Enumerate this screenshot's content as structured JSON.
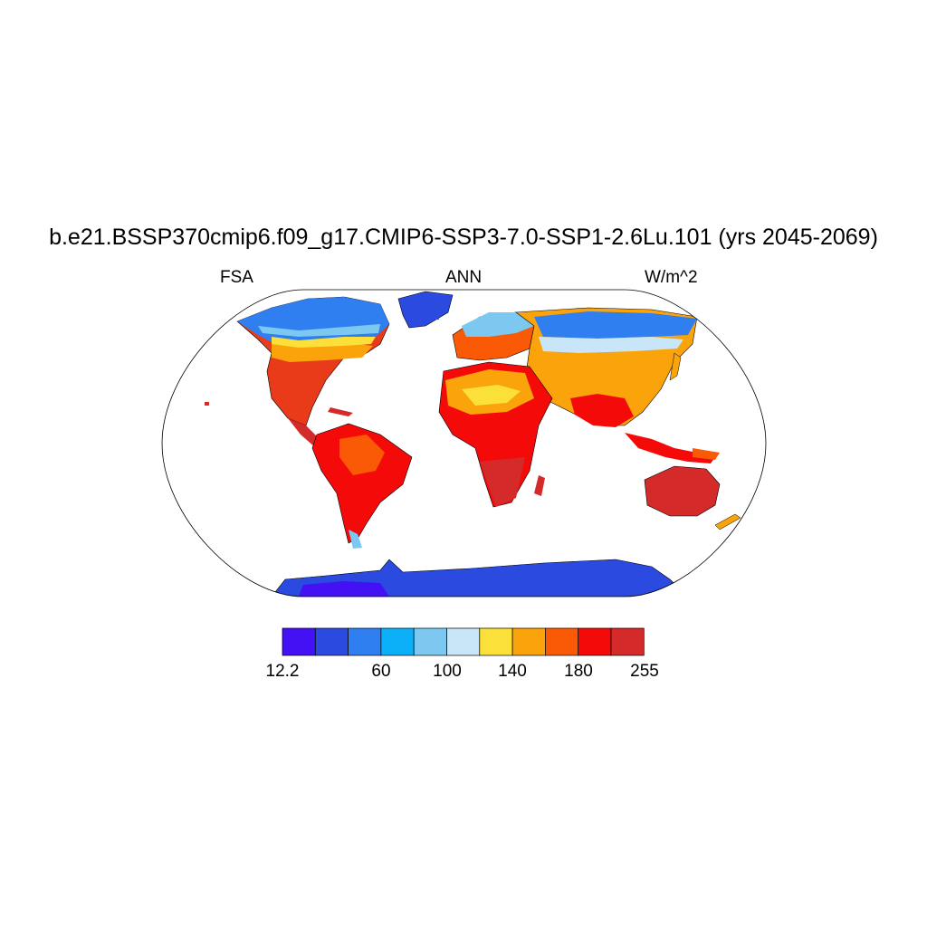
{
  "title": "b.e21.BSSP370cmip6.f09_g17.CMIP6-SSP3-7.0-SSP1-2.6Lu.101 (yrs 2045-2069)",
  "variable": "FSA",
  "season": "ANN",
  "units": "W/m^2",
  "colorbar": {
    "colors": [
      "#4410f4",
      "#2a4ae0",
      "#2f7ff0",
      "#0cb0f8",
      "#7cc8f0",
      "#c8e6f8",
      "#fbe03a",
      "#faa30a",
      "#fa5a05",
      "#f50a0a",
      "#d42a2a"
    ],
    "tick_labels": [
      "12.2",
      "60",
      "100",
      "140",
      "180",
      "255"
    ]
  },
  "legend_colors": {
    "ocean": "#ffffff",
    "coast": "#000000"
  }
}
